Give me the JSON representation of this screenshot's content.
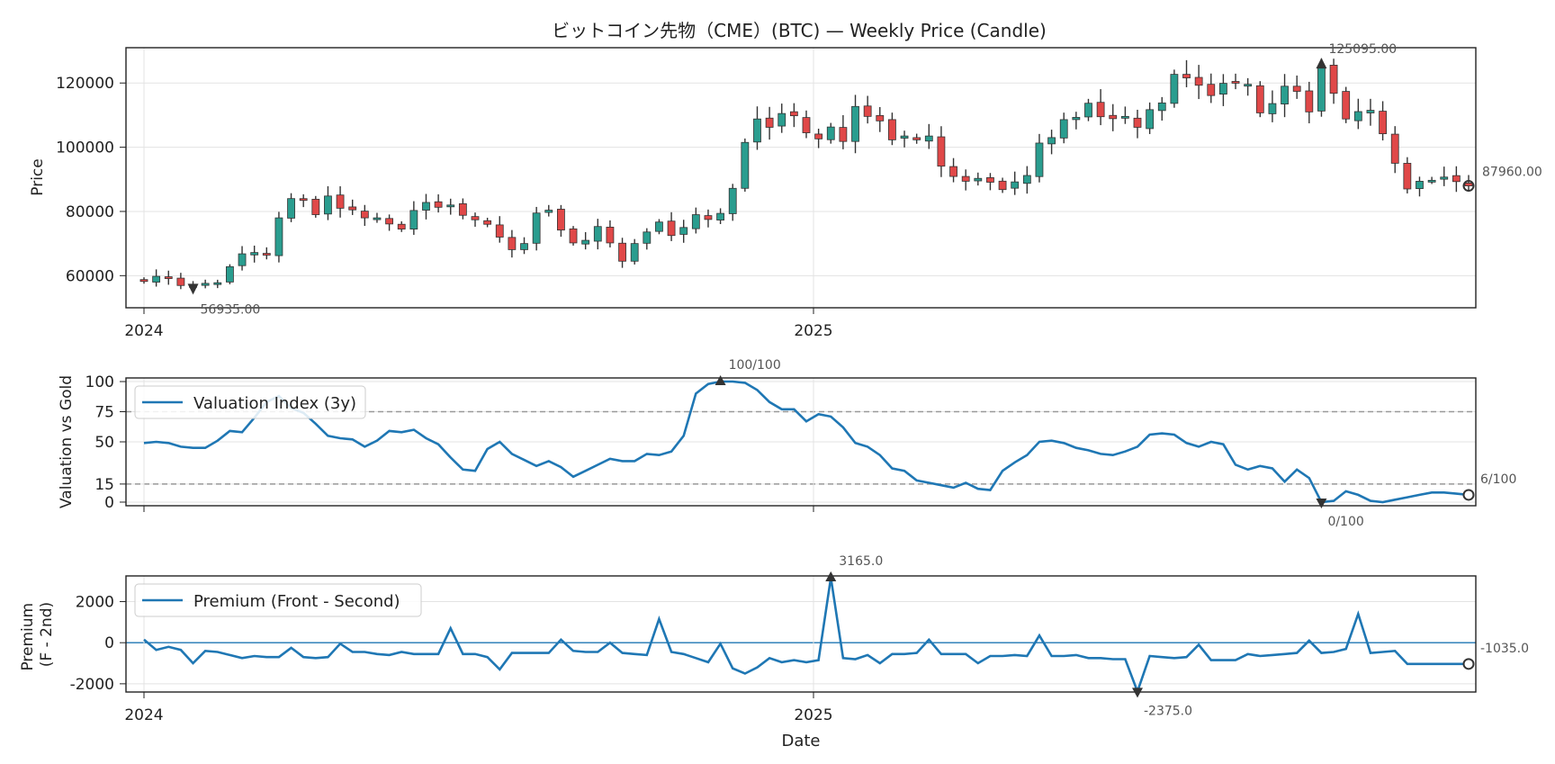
{
  "chart_data": [
    {
      "type": "candlestick",
      "title": "ビットコイン先物（CME）(BTC) — Weekly Price (Candle)",
      "ylabel": "Price",
      "ylim": [
        50000,
        131000
      ],
      "yticks": [
        60000,
        80000,
        100000,
        120000
      ],
      "xticks": [
        "2024",
        "2025"
      ],
      "grid": true,
      "series": [
        {
          "close": [
            58200,
            59800,
            59300,
            56935,
            56900,
            57600,
            57800,
            62800,
            66800,
            67200,
            66400,
            78000,
            84000,
            83700,
            79000,
            84800,
            81000,
            80500,
            78000,
            78000,
            76100,
            74500,
            80300,
            82800,
            81300,
            82000,
            78800,
            77400,
            76000,
            72000,
            68100,
            70000,
            79500,
            80400,
            74200,
            70200,
            71000,
            75300,
            70200,
            64500,
            70000,
            73600,
            76700,
            72500,
            75000,
            79000,
            77500,
            79400,
            87200,
            101500,
            108800,
            106200,
            110500,
            109800,
            104500,
            102600,
            106300,
            101800,
            112700,
            109600,
            108200,
            102300,
            103500,
            102300,
            103500,
            94100,
            90900,
            89400,
            90300,
            89100,
            86800,
            89200,
            91200,
            101300,
            103000,
            108600,
            109300,
            113700,
            109500,
            108900,
            109600,
            106200,
            111700,
            113800,
            122700,
            121600,
            119300,
            116100,
            119900,
            120000,
            119600,
            110700,
            113600,
            119000,
            117400,
            111000,
            125095,
            116800,
            108800,
            111100,
            111500,
            104200,
            95000,
            87000,
            89400,
            89700,
            90700,
            89300,
            87960
          ]
        }
      ],
      "high_marker": {
        "label": "125095.00"
      },
      "low_marker": {
        "label": "56935.00"
      },
      "last_marker": {
        "label": "87960.00"
      }
    },
    {
      "type": "line",
      "ylabel": "Valuation vs Gold",
      "ylim": [
        -3,
        103
      ],
      "yticks": [
        0,
        15,
        50,
        75,
        100
      ],
      "reference_lines": [
        15,
        75
      ],
      "series": [
        {
          "name": "Valuation Index (3y)",
          "values": [
            49,
            50,
            49,
            46,
            45,
            45,
            51,
            59,
            58,
            70,
            83,
            88,
            78,
            74,
            65,
            55,
            53,
            52,
            46,
            51,
            59,
            58,
            60,
            53,
            48,
            37,
            27,
            26,
            44,
            50,
            40,
            35,
            30,
            34,
            29,
            21,
            26,
            31,
            36,
            34,
            34,
            40,
            39,
            42,
            55,
            90,
            98,
            100,
            100,
            99,
            93,
            83,
            77,
            77,
            67,
            73,
            71,
            62,
            49,
            46,
            39,
            28,
            26,
            18,
            16,
            14,
            12,
            16,
            11,
            10,
            26,
            33,
            39,
            50,
            51,
            49,
            45,
            43,
            40,
            39,
            42,
            46,
            56,
            57,
            56,
            49,
            46,
            50,
            48,
            31,
            27,
            30,
            28,
            17,
            27,
            20,
            0,
            1,
            9,
            6,
            1,
            0,
            2,
            4,
            6,
            8,
            8,
            7,
            6
          ]
        }
      ],
      "high_marker": {
        "label": "100/100"
      },
      "low_marker": {
        "label": "0/100"
      },
      "last_marker": {
        "label": "6/100"
      }
    },
    {
      "type": "line",
      "ylabel": "Premium\n(F - 2nd)",
      "xlabel": "Date",
      "ylim": [
        -2400,
        3250
      ],
      "yticks": [
        -2000,
        0,
        2000
      ],
      "xticks": [
        "2024",
        "2025"
      ],
      "zero_line": true,
      "series": [
        {
          "name": "Premium (Front - Second)",
          "values": [
            150,
            -350,
            -200,
            -350,
            -1000,
            -400,
            -450,
            -600,
            -750,
            -650,
            -700,
            -700,
            -250,
            -700,
            -750,
            -700,
            -50,
            -450,
            -450,
            -550,
            -600,
            -450,
            -550,
            -550,
            -550,
            700,
            -550,
            -550,
            -700,
            -1300,
            -500,
            -500,
            -500,
            -500,
            150,
            -400,
            -450,
            -450,
            0,
            -500,
            -550,
            -600,
            1150,
            -450,
            -550,
            -750,
            -950,
            -50,
            -1250,
            -1500,
            -1200,
            -750,
            -950,
            -850,
            -950,
            -850,
            3165,
            -750,
            -800,
            -600,
            -1000,
            -550,
            -550,
            -500,
            150,
            -550,
            -550,
            -550,
            -1000,
            -650,
            -650,
            -600,
            -650,
            350,
            -650,
            -650,
            -600,
            -750,
            -750,
            -800,
            -800,
            -2375,
            -650,
            -700,
            -750,
            -700,
            -100,
            -850,
            -850,
            -850,
            -550,
            -650,
            -600,
            -550,
            -500,
            100,
            -500,
            -450,
            -300,
            1400,
            -500,
            -450,
            -400,
            -1035,
            -1035,
            -1035,
            -1035,
            -1035,
            -1035
          ],
          "note": "weekly front-minus-second month premium"
        }
      ],
      "high_marker": {
        "label": "3165.0"
      },
      "low_marker": {
        "label": "-2375.0"
      },
      "last_marker": {
        "label": "-1035.0"
      }
    }
  ],
  "colors": {
    "up": "#2a9d8f",
    "down": "#e04848",
    "line": "#1f77b4",
    "reference": "#999999",
    "marker": "#333333"
  }
}
